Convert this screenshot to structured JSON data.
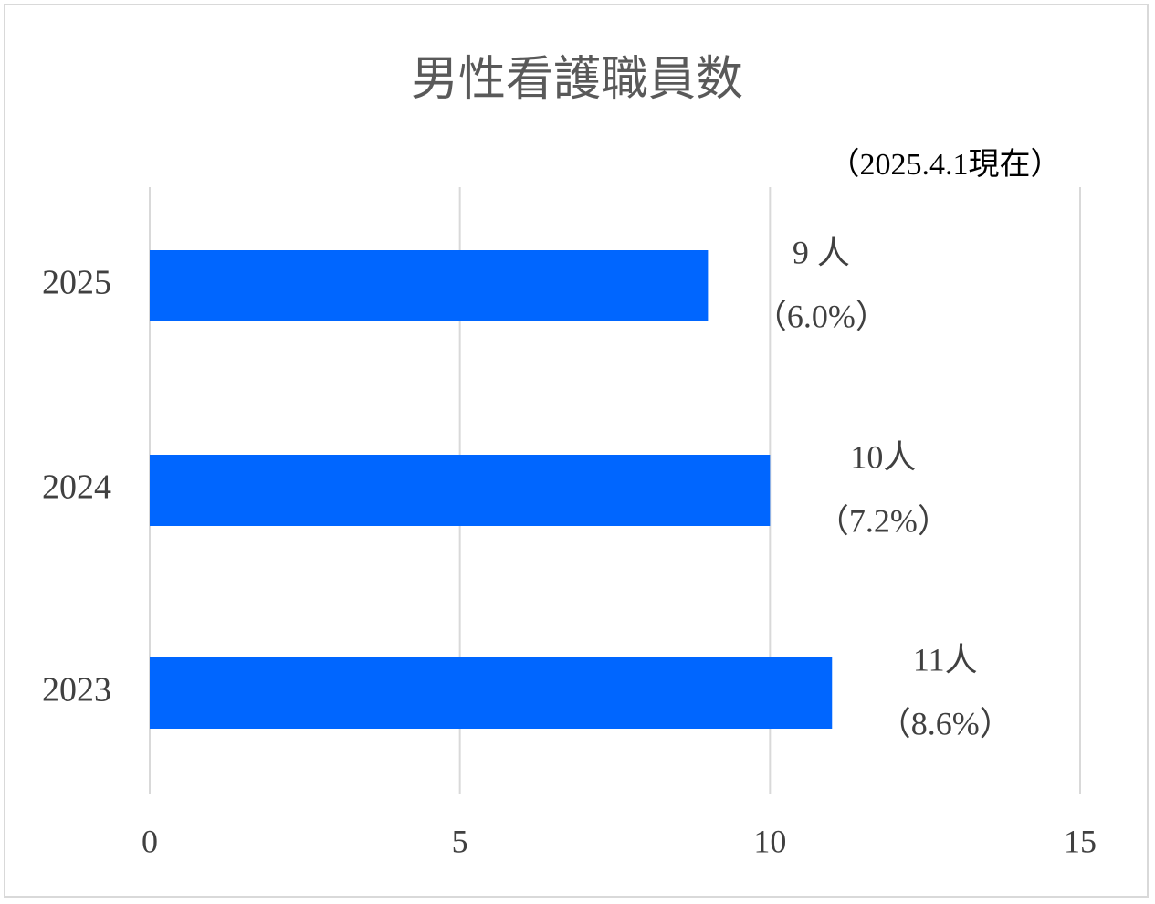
{
  "chart_data": {
    "type": "bar",
    "orientation": "horizontal",
    "title": "男性看護職員数",
    "subtitle": "（2025.4.1現在）",
    "categories": [
      "2025",
      "2024",
      "2023"
    ],
    "values": [
      9,
      10,
      11
    ],
    "value_labels": [
      "9 人",
      "10人",
      "11人"
    ],
    "share_labels": [
      "（6.0%）",
      "（7.2%）",
      "（8.6%）"
    ],
    "color": "#0066ff",
    "xlim": [
      0,
      15
    ],
    "xticks": [
      0,
      5,
      10,
      15
    ],
    "grid": true
  }
}
